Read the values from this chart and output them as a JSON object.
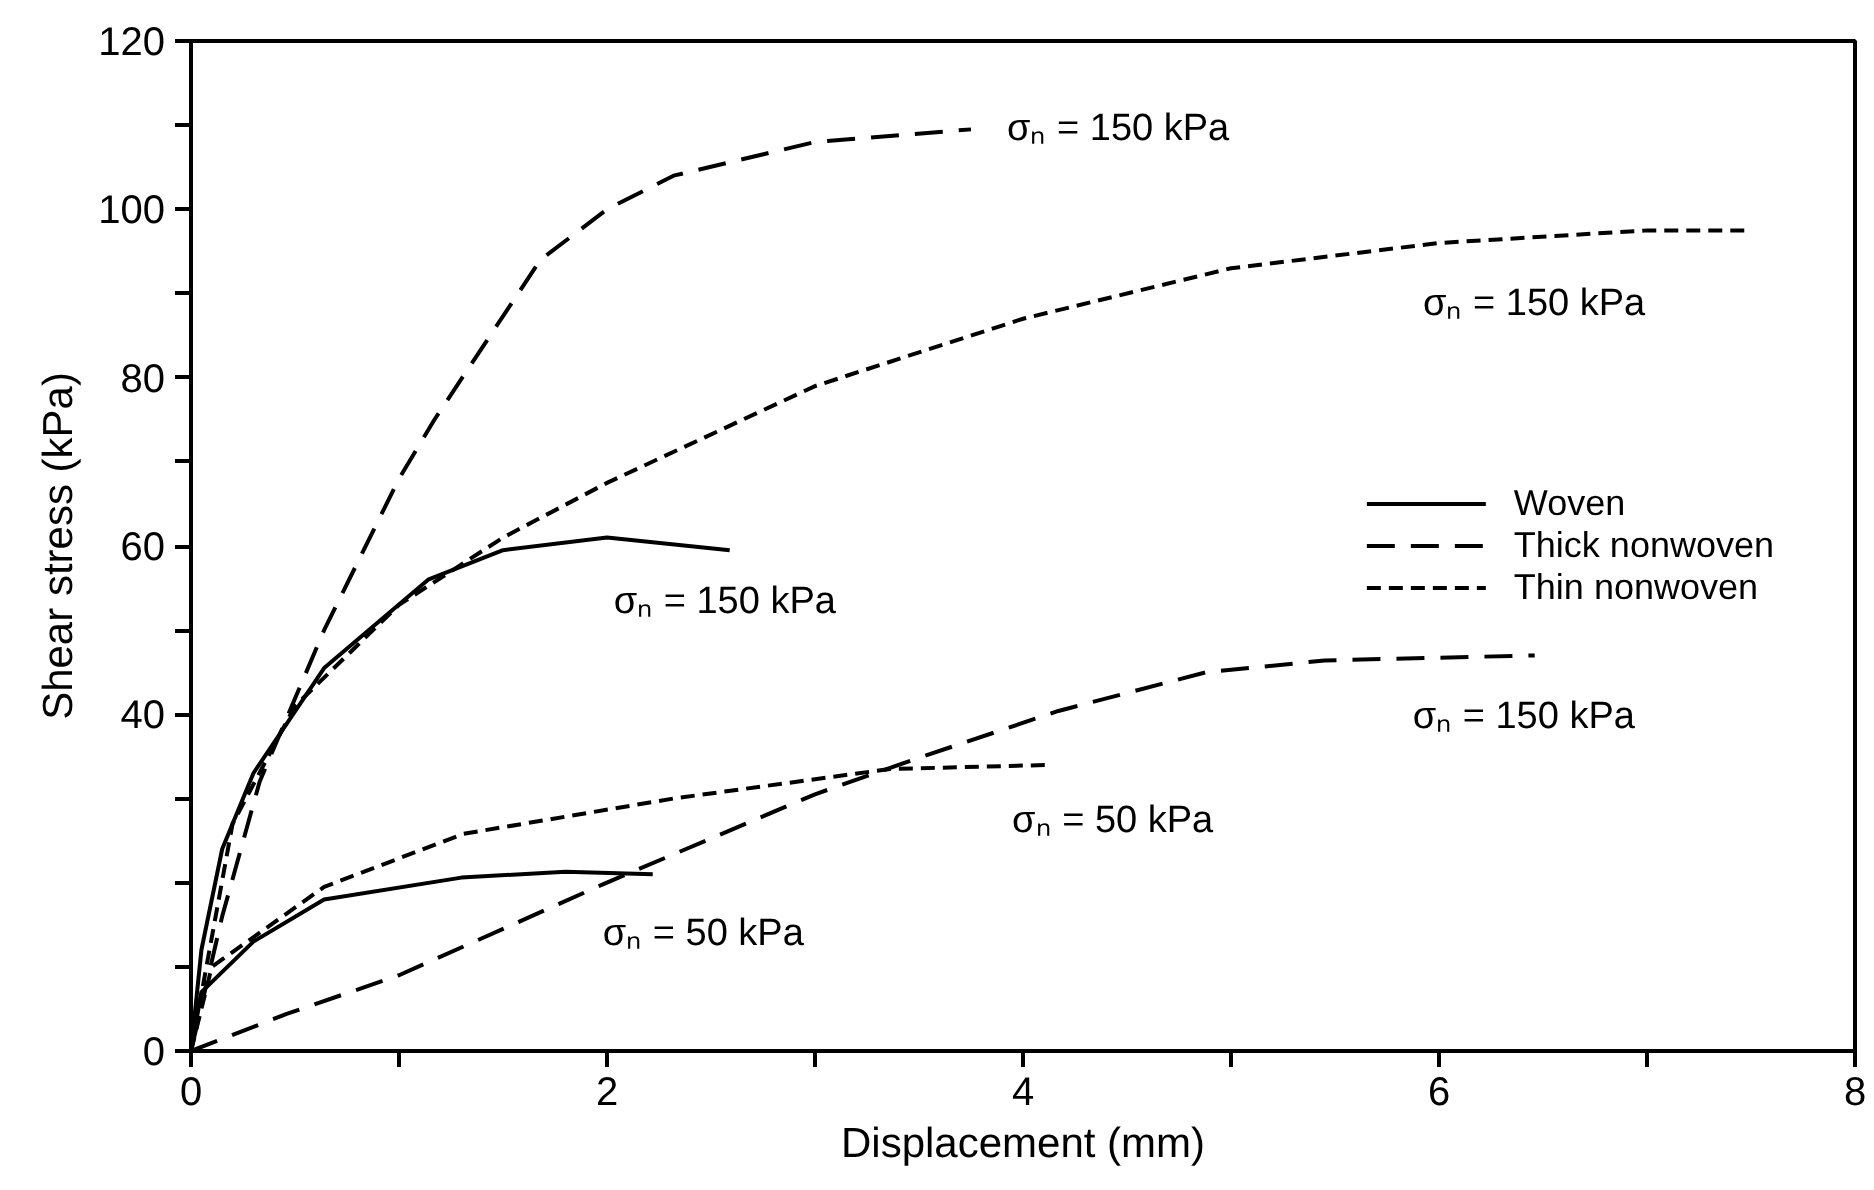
{
  "chart_data": {
    "type": "line",
    "xlabel": "Displacement (mm)",
    "ylabel": "Shear stress (kPa)",
    "xlim": [
      0,
      8
    ],
    "ylim": [
      0,
      120
    ],
    "xticks": [
      0,
      {
        "value": 1,
        "label": null
      },
      2,
      {
        "value": 3,
        "label": null
      },
      4,
      {
        "value": 5,
        "label": null
      },
      6,
      {
        "value": 7,
        "label": null
      },
      8
    ],
    "yticks": [
      0,
      {
        "value": 10,
        "label": null
      },
      {
        "value": 20,
        "label": null
      },
      {
        "value": 30,
        "label": null
      },
      40,
      {
        "value": 50,
        "label": null
      },
      60,
      {
        "value": 70,
        "label": null
      },
      80,
      {
        "value": 90,
        "label": null
      },
      100,
      {
        "value": 110,
        "label": null
      },
      120
    ],
    "grid": false,
    "legend": "right",
    "marker": "none",
    "series": [
      {
        "name": "Woven",
        "color": "#000000",
        "line_style": "solid",
        "x": [
          0,
          0.05,
          0.15,
          0.3,
          0.64,
          1.14,
          1.5,
          2,
          2.59
        ],
        "values": [
          0,
          12,
          24,
          33,
          45.5,
          56,
          59.5,
          61,
          59.5
        ]
      },
      {
        "name": "Thick nonwoven",
        "color": "#000000",
        "line_style": "dashed",
        "x": [
          0,
          0.15,
          0.33,
          0.64,
          1,
          1.17,
          1.68,
          2,
          2.32,
          3,
          3.75
        ],
        "values": [
          0,
          16,
          32,
          50,
          68,
          75,
          94,
          100,
          104,
          108,
          109.5
        ]
      },
      {
        "name": "Thin nonwoven",
        "color": "#000000",
        "line_style": "dotted",
        "x": [
          0,
          0.2,
          0.5,
          1,
          1.5,
          2,
          3,
          4,
          5,
          6,
          7,
          7.5
        ],
        "values": [
          0,
          27,
          41,
          53,
          61,
          67.5,
          79,
          87,
          93,
          96,
          97.5,
          97.5
        ]
      },
      {
        "color": "#000000",
        "line_style": "solid",
        "x": [
          0,
          0.05,
          0.3,
          0.64,
          1.3,
          1.8,
          2.22
        ],
        "values": [
          0,
          7,
          13,
          18,
          20.6,
          21.3,
          21
        ]
      },
      {
        "color": "#000000",
        "line_style": "dotted",
        "x": [
          0,
          0.1,
          0.64,
          1.31,
          2.32,
          3.36,
          4.14
        ],
        "values": [
          0,
          10,
          19.5,
          25.8,
          30,
          33.5,
          34
        ]
      },
      {
        "color": "#000000",
        "line_style": "dashed",
        "x": [
          0,
          0.46,
          1,
          1.98,
          3,
          3.46,
          4.17,
          4.88,
          5.45,
          6.46
        ],
        "values": [
          0,
          4.4,
          9,
          19.8,
          30.5,
          34.5,
          40.4,
          45,
          46.4,
          47
        ]
      }
    ],
    "annotations": [
      "σₙ = 150 kPa",
      "σₙ = 150 kPa",
      "σₙ = 150 kPa",
      "σₙ = 50 kPa",
      "σₙ = 50 kPa",
      "σₙ = 150 kPa"
    ]
  }
}
